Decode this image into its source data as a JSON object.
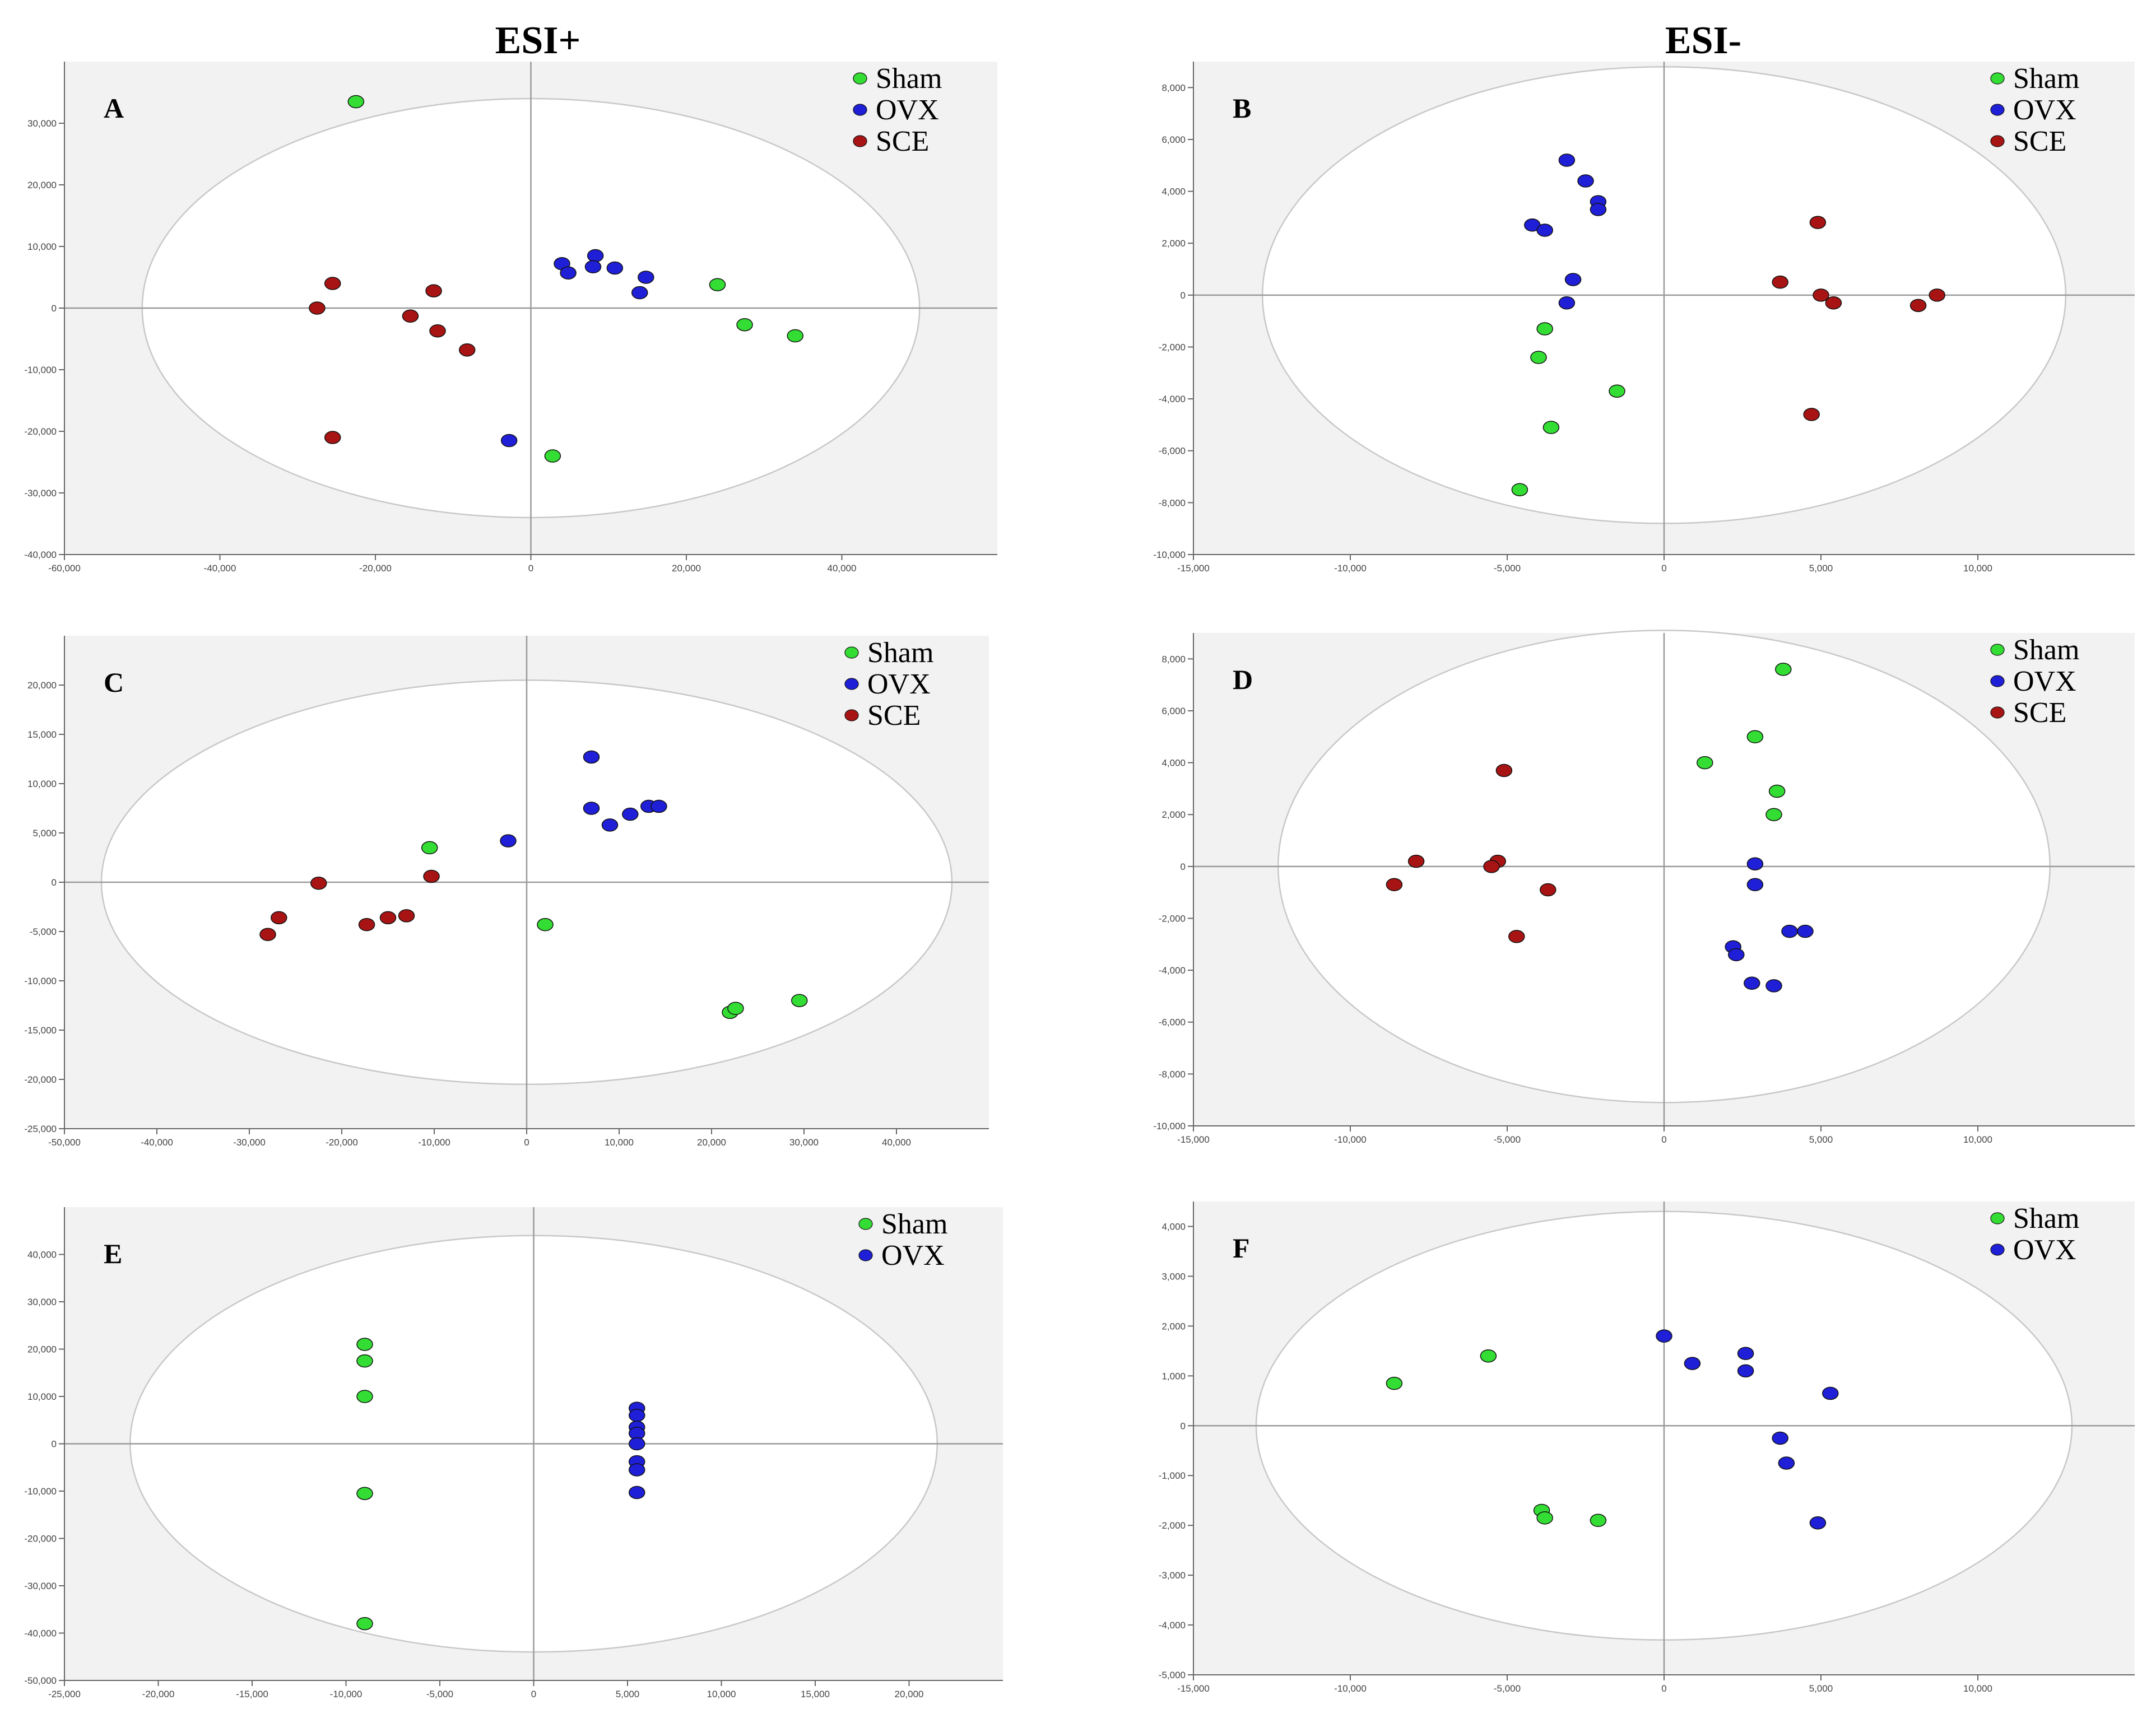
{
  "figure": {
    "titles": {
      "left": "ESI+",
      "right": "ESI-"
    }
  },
  "colors": {
    "Sham": "#33dd33",
    "OVX": "#1f1fd8",
    "SCE": "#a81414",
    "plot_bg": "#f2f2f2",
    "axis": "#9a9a9a"
  },
  "chart_data": [
    {
      "id": "A",
      "type": "scatter",
      "label": "A",
      "xlim": [
        -60000,
        60000
      ],
      "ylim": [
        -40000,
        40000
      ],
      "xticks": [
        -60000,
        -40000,
        -20000,
        0,
        20000,
        40000
      ],
      "yticks": [
        -40000,
        -30000,
        -20000,
        -10000,
        0,
        10000,
        20000,
        30000
      ],
      "xtick_labels": [
        "-60,000",
        "-40,000",
        "-20,000",
        "0",
        "20,000",
        "40,000"
      ],
      "ytick_labels": [
        "-40,000",
        "-30,000",
        "-20,000",
        "-10,000",
        "0",
        "10,000",
        "20,000",
        "30,000"
      ],
      "ellipse": {
        "rx": 50000,
        "ry": 34000
      },
      "legend": [
        "Sham",
        "OVX",
        "SCE"
      ],
      "series": [
        {
          "name": "Sham",
          "points": [
            [
              -22500,
              33500
            ],
            [
              24000,
              3800
            ],
            [
              27500,
              -2700
            ],
            [
              34000,
              -4500
            ],
            [
              2800,
              -24000
            ]
          ]
        },
        {
          "name": "OVX",
          "points": [
            [
              4000,
              7200
            ],
            [
              4800,
              5700
            ],
            [
              8300,
              8500
            ],
            [
              8000,
              6700
            ],
            [
              10800,
              6500
            ],
            [
              14800,
              5000
            ],
            [
              14000,
              2500
            ],
            [
              -2800,
              -21500
            ]
          ]
        },
        {
          "name": "SCE",
          "points": [
            [
              -25500,
              4000
            ],
            [
              -27500,
              0
            ],
            [
              -12500,
              2800
            ],
            [
              -15500,
              -1300
            ],
            [
              -12000,
              -3700
            ],
            [
              -8200,
              -6800
            ],
            [
              -25500,
              -21000
            ]
          ]
        }
      ]
    },
    {
      "id": "B",
      "type": "scatter",
      "label": "B",
      "xlim": [
        -15000,
        15000
      ],
      "ylim": [
        -10000,
        9000
      ],
      "xticks": [
        -15000,
        -10000,
        -5000,
        0,
        5000,
        10000
      ],
      "yticks": [
        -10000,
        -8000,
        -6000,
        -4000,
        -2000,
        0,
        2000,
        4000,
        6000,
        8000
      ],
      "xtick_labels": [
        "-15,000",
        "-10,000",
        "-5,000",
        "0",
        "5,000",
        "10,000"
      ],
      "ytick_labels": [
        "-10,000",
        "-8,000",
        "-6,000",
        "-4,000",
        "-2,000",
        "0",
        "2,000",
        "4,000",
        "6,000",
        "8,000"
      ],
      "ellipse": {
        "rx": 12800,
        "ry": 8800
      },
      "legend": [
        "Sham",
        "OVX",
        "SCE"
      ],
      "series": [
        {
          "name": "Sham",
          "points": [
            [
              -3800,
              -1300
            ],
            [
              -4000,
              -2400
            ],
            [
              -1500,
              -3700
            ],
            [
              -3600,
              -5100
            ],
            [
              -4600,
              -7500
            ]
          ]
        },
        {
          "name": "OVX",
          "points": [
            [
              -3100,
              5200
            ],
            [
              -2500,
              4400
            ],
            [
              -2100,
              3600
            ],
            [
              -2100,
              3300
            ],
            [
              -4200,
              2700
            ],
            [
              -3800,
              2500
            ],
            [
              -2900,
              600
            ],
            [
              -3100,
              -300
            ]
          ]
        },
        {
          "name": "SCE",
          "points": [
            [
              4900,
              2800
            ],
            [
              3700,
              500
            ],
            [
              5000,
              0
            ],
            [
              5400,
              -300
            ],
            [
              8700,
              0
            ],
            [
              8100,
              -400
            ],
            [
              4700,
              -4600
            ]
          ]
        }
      ]
    },
    {
      "id": "C",
      "type": "scatter",
      "label": "C",
      "xlim": [
        -50000,
        50000
      ],
      "ylim": [
        -25000,
        25000
      ],
      "xticks": [
        -50000,
        -40000,
        -30000,
        -20000,
        -10000,
        0,
        10000,
        20000,
        30000,
        40000
      ],
      "yticks": [
        -25000,
        -20000,
        -15000,
        -10000,
        -5000,
        0,
        5000,
        10000,
        15000,
        20000
      ],
      "xtick_labels": [
        "-50,000",
        "-40,000",
        "-30,000",
        "-20,000",
        "-10,000",
        "0",
        "10,000",
        "20,000",
        "30,000",
        "40,000"
      ],
      "ytick_labels": [
        "-25,000",
        "-20,000",
        "-15,000",
        "-10,000",
        "-5,000",
        "0",
        "5,000",
        "10,000",
        "15,000",
        "20,000"
      ],
      "ellipse": {
        "rx": 46000,
        "ry": 20500
      },
      "legend": [
        "Sham",
        "OVX",
        "SCE"
      ],
      "series": [
        {
          "name": "Sham",
          "points": [
            [
              -10500,
              3500
            ],
            [
              2000,
              -4300
            ],
            [
              29500,
              -12000
            ],
            [
              22000,
              -13200
            ],
            [
              22600,
              -12800
            ]
          ]
        },
        {
          "name": "OVX",
          "points": [
            [
              -2000,
              4200
            ],
            [
              7000,
              12700
            ],
            [
              7000,
              7500
            ],
            [
              9000,
              5800
            ],
            [
              11200,
              6900
            ],
            [
              13200,
              7700
            ],
            [
              14300,
              7700
            ]
          ]
        },
        {
          "name": "SCE",
          "points": [
            [
              -10300,
              600
            ],
            [
              -22500,
              -100
            ],
            [
              -26800,
              -3600
            ],
            [
              -28000,
              -5300
            ],
            [
              -17300,
              -4300
            ],
            [
              -15000,
              -3600
            ],
            [
              -13000,
              -3400
            ]
          ]
        }
      ]
    },
    {
      "id": "D",
      "type": "scatter",
      "label": "D",
      "xlim": [
        -15000,
        15000
      ],
      "ylim": [
        -10000,
        9000
      ],
      "xticks": [
        -15000,
        -10000,
        -5000,
        0,
        5000,
        10000
      ],
      "yticks": [
        -10000,
        -8000,
        -6000,
        -4000,
        -2000,
        0,
        2000,
        4000,
        6000,
        8000
      ],
      "xtick_labels": [
        "-15,000",
        "-10,000",
        "-5,000",
        "0",
        "5,000",
        "10,000"
      ],
      "ytick_labels": [
        "-10,000",
        "-8,000",
        "-6,000",
        "-4,000",
        "-2,000",
        "0",
        "2,000",
        "4,000",
        "6,000",
        "8,000"
      ],
      "ellipse": {
        "rx": 12300,
        "ry": 9100
      },
      "legend": [
        "Sham",
        "OVX",
        "SCE"
      ],
      "series": [
        {
          "name": "Sham",
          "points": [
            [
              3800,
              7600
            ],
            [
              2900,
              5000
            ],
            [
              1300,
              4000
            ],
            [
              3600,
              2900
            ],
            [
              3500,
              2000
            ]
          ]
        },
        {
          "name": "OVX",
          "points": [
            [
              2900,
              100
            ],
            [
              2900,
              -700
            ],
            [
              2200,
              -3100
            ],
            [
              2300,
              -3400
            ],
            [
              4000,
              -2500
            ],
            [
              4500,
              -2500
            ],
            [
              2800,
              -4500
            ],
            [
              3500,
              -4600
            ]
          ]
        },
        {
          "name": "SCE",
          "points": [
            [
              -5100,
              3700
            ],
            [
              -7900,
              200
            ],
            [
              -5300,
              200
            ],
            [
              -5500,
              0
            ],
            [
              -8600,
              -700
            ],
            [
              -3700,
              -900
            ],
            [
              -4700,
              -2700
            ]
          ]
        }
      ]
    },
    {
      "id": "E",
      "type": "scatter",
      "label": "E",
      "xlim": [
        -25000,
        25000
      ],
      "ylim": [
        -50000,
        50000
      ],
      "xticks": [
        -25000,
        -20000,
        -15000,
        -10000,
        -5000,
        0,
        5000,
        10000,
        15000,
        20000
      ],
      "yticks": [
        -50000,
        -40000,
        -30000,
        -20000,
        -10000,
        0,
        10000,
        20000,
        30000,
        40000
      ],
      "xtick_labels": [
        "-25,000",
        "-20,000",
        "-15,000",
        "-10,000",
        "-5,000",
        "0",
        "5,000",
        "10,000",
        "15,000",
        "20,000"
      ],
      "ytick_labels": [
        "-50,000",
        "-40,000",
        "-30,000",
        "-20,000",
        "-10,000",
        "0",
        "10,000",
        "20,000",
        "30,000",
        "40,000"
      ],
      "ellipse": {
        "rx": 21500,
        "ry": 44000
      },
      "legend": [
        "Sham",
        "OVX"
      ],
      "series": [
        {
          "name": "Sham",
          "points": [
            [
              -9000,
              21000
            ],
            [
              -9000,
              17500
            ],
            [
              -9000,
              10000
            ],
            [
              -9000,
              -10500
            ],
            [
              -9000,
              -38000
            ]
          ]
        },
        {
          "name": "OVX",
          "points": [
            [
              5500,
              7500
            ],
            [
              5500,
              6000
            ],
            [
              5500,
              3500
            ],
            [
              5500,
              2200
            ],
            [
              5500,
              0
            ],
            [
              5500,
              -3800
            ],
            [
              5500,
              -5500
            ],
            [
              5500,
              -10300
            ]
          ]
        }
      ]
    },
    {
      "id": "F",
      "type": "scatter",
      "label": "F",
      "xlim": [
        -15000,
        15000
      ],
      "ylim": [
        -5000,
        4500
      ],
      "xticks": [
        -15000,
        -10000,
        -5000,
        0,
        5000,
        10000
      ],
      "yticks": [
        -5000,
        -4000,
        -3000,
        -2000,
        -1000,
        0,
        1000,
        2000,
        3000,
        4000
      ],
      "xtick_labels": [
        "-15,000",
        "-10,000",
        "-5,000",
        "0",
        "5,000",
        "10,000"
      ],
      "ytick_labels": [
        "-5,000",
        "-4,000",
        "-3,000",
        "-2,000",
        "-1,000",
        "0",
        "1,000",
        "2,000",
        "3,000",
        "4,000"
      ],
      "ellipse": {
        "rx": 13000,
        "ry": 4300
      },
      "legend": [
        "Sham",
        "OVX"
      ],
      "series": [
        {
          "name": "Sham",
          "points": [
            [
              -8600,
              850
            ],
            [
              -5600,
              1400
            ],
            [
              -3900,
              -1700
            ],
            [
              -3800,
              -1850
            ],
            [
              -2100,
              -1900
            ]
          ]
        },
        {
          "name": "OVX",
          "points": [
            [
              0,
              1800
            ],
            [
              900,
              1250
            ],
            [
              2600,
              1450
            ],
            [
              2600,
              1100
            ],
            [
              5300,
              650
            ],
            [
              3700,
              -250
            ],
            [
              3900,
              -750
            ],
            [
              4900,
              -1950
            ]
          ]
        }
      ]
    }
  ]
}
